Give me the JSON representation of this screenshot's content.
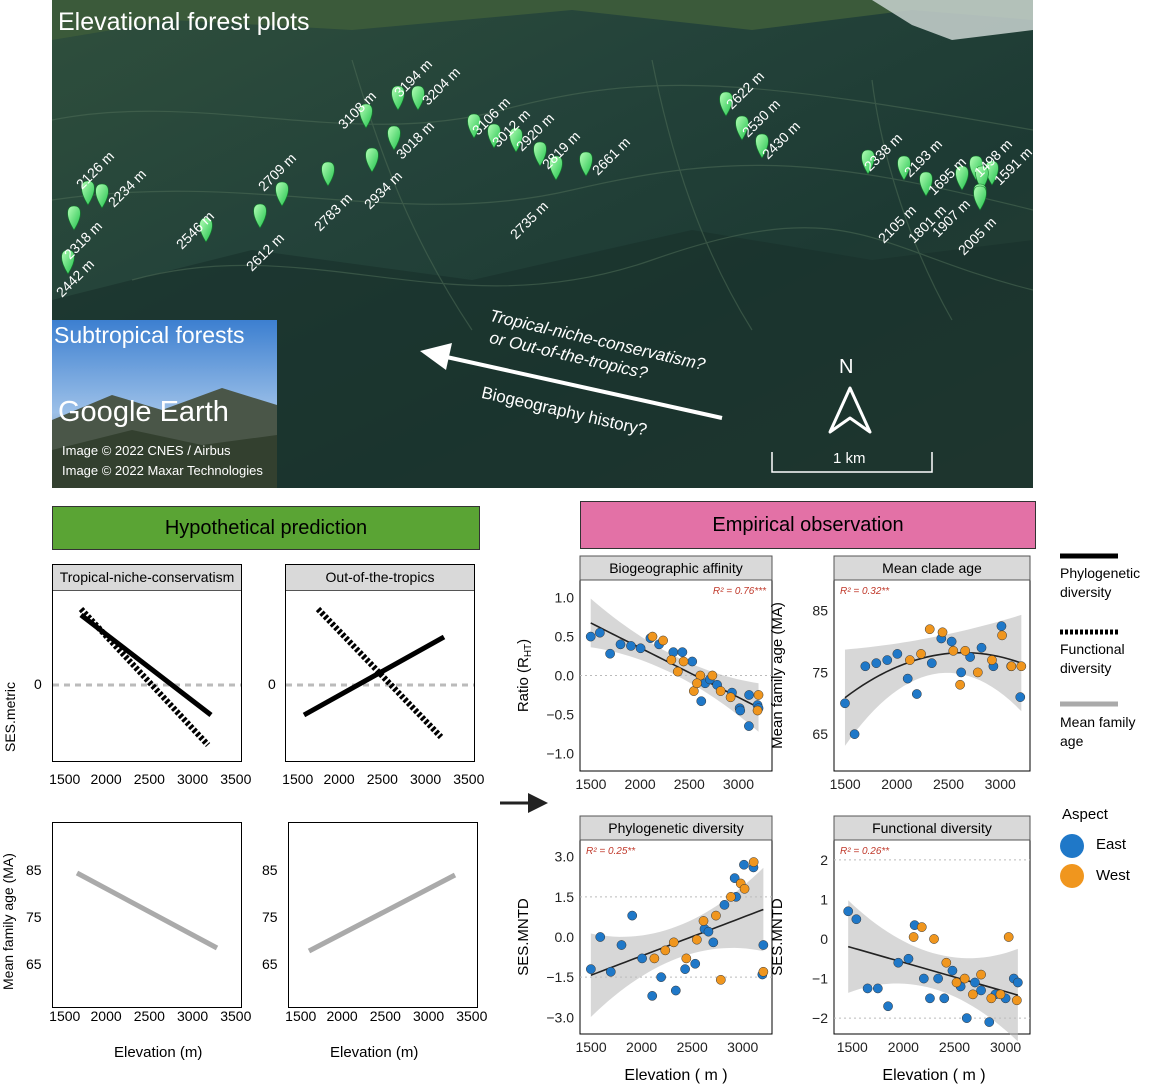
{
  "map": {
    "title": "Elevational forest plots",
    "inset_title": "Subtropical forests",
    "inset_brand": "Google Earth",
    "credit_1": "Image © 2022 CNES / Airbus",
    "credit_2": "Image © 2022 Maxar Technologies",
    "arrow_text_1": "Tropical-niche-conservatism?",
    "arrow_text_2": "or Out-of-the-tropics?",
    "arrow_text_3": "Biogeography history?",
    "north": "N",
    "scale": "1 km",
    "plots": [
      "2126 m",
      "2234 m",
      "2318 m",
      "2442 m",
      "2546 m",
      "2709 m",
      "2612 m",
      "2783 m",
      "3108 m",
      "3194 m",
      "3204 m",
      "3018 m",
      "2934 m",
      "3106 m",
      "3012 m",
      "2920 m",
      "2819 m",
      "2661 m",
      "2735 m",
      "2622 m",
      "2530 m",
      "2430 m",
      "2338 m",
      "2193 m",
      "1695 m",
      "1498 m",
      "1591 m",
      "2105 m",
      "1801 m",
      "1907 m",
      "2005 m"
    ]
  },
  "hypothesis": {
    "header": "Hypothetical prediction",
    "panel_tnc": "Tropical-niche-conservatism",
    "panel_ott": "Out-of-the-tropics",
    "ylabel_top": "SES.metric",
    "ylabel_bottom": "Mean family age (MA)",
    "xlabel": "Elevation (m)",
    "xticks": [
      "1500",
      "2000",
      "2500",
      "3000",
      "3500"
    ],
    "yticks_top": [
      "0"
    ],
    "yticks_bottom": [
      "85",
      "75",
      "65"
    ]
  },
  "empirical": {
    "header": "Empirical observation",
    "xlabel": "Elevation ( m )",
    "panels": {
      "affinity": {
        "title": "Biogeographic affinity",
        "ylabel": "Ratio (R",
        "ylabel_sub": "HT",
        "ylabel_end": ")",
        "r2": "R² = 0.76***",
        "yticks": [
          "1.0",
          "0.5",
          "0.0",
          "−0.5",
          "−1.0"
        ],
        "xticks": [
          "1500",
          "2000",
          "2500",
          "3000"
        ]
      },
      "clade": {
        "title": "Mean clade age",
        "ylabel": "Mean family age (MA)",
        "r2": "R² = 0.32**",
        "yticks": [
          "85",
          "75",
          "65"
        ],
        "xticks": [
          "1500",
          "2000",
          "2500",
          "3000"
        ]
      },
      "phylo": {
        "title": "Phylogenetic diversity",
        "ylabel": "SES.MNTD",
        "r2": "R² = 0.25**",
        "yticks": [
          "3.0",
          "1.5",
          "0.0",
          "−1.5",
          "−3.0"
        ],
        "xticks": [
          "1500",
          "2000",
          "2500",
          "3000"
        ]
      },
      "func": {
        "title": "Functional diversity",
        "ylabel": "SES.MNTD",
        "r2": "R² = 0.26**",
        "yticks": [
          "2",
          "1",
          "0",
          "−1",
          "−2"
        ],
        "xticks": [
          "1500",
          "2000",
          "2500",
          "3000"
        ]
      }
    }
  },
  "legend": {
    "phylo": "Phylogenetic diversity",
    "phylo_2": "diversity",
    "phylo_1": "Phylogenetic",
    "func_1": "Functional",
    "func_2": "diversity",
    "age_1": "Mean family",
    "age_2": "age",
    "aspect_title": "Aspect",
    "east": "East",
    "west": "West"
  },
  "colors": {
    "east": "#1f78c8",
    "west": "#f0961e",
    "hyp_header": "#5aa434",
    "emp_header": "#e371a6",
    "pin": "#3ee26a"
  },
  "chart_data": [
    {
      "type": "scatter",
      "title": "Biogeographic affinity",
      "ylabel": "Ratio (RHT)",
      "xlabel": "Elevation ( m )",
      "xlim": [
        1450,
        3280
      ],
      "ylim": [
        -1.15,
        1.15
      ],
      "series": [
        {
          "name": "East",
          "x": [
            1498,
            1591,
            1695,
            1801,
            1907,
            2005,
            2105,
            2193,
            2338,
            2430,
            2530,
            2622,
            2661,
            2709,
            2783,
            2934,
            3012,
            3018,
            3106,
            3108,
            3194,
            3204
          ],
          "y": [
            0.5,
            0.55,
            0.28,
            0.4,
            0.38,
            0.35,
            0.48,
            0.4,
            0.3,
            0.3,
            0.18,
            -0.33,
            -0.1,
            -0.05,
            -0.12,
            -0.22,
            -0.42,
            -0.45,
            -0.65,
            -0.25,
            -0.38,
            -0.42
          ]
        },
        {
          "name": "West",
          "x": [
            2126,
            2234,
            2318,
            2442,
            2546,
            2612,
            2735,
            2819,
            2920,
            3194,
            3204,
            2383,
            2578
          ],
          "y": [
            0.5,
            0.45,
            0.2,
            0.18,
            -0.2,
            0.0,
            0.0,
            -0.2,
            -0.28,
            -0.45,
            -0.25,
            0.05,
            -0.1
          ]
        }
      ]
    },
    {
      "type": "scatter",
      "title": "Mean clade age",
      "ylabel": "Mean family age (MA)",
      "xlabel": "Elevation ( m )",
      "xlim": [
        1450,
        3230
      ],
      "ylim": [
        60,
        89
      ],
      "series": [
        {
          "name": "East",
          "x": [
            1498,
            1591,
            1695,
            1801,
            1907,
            2005,
            2105,
            2193,
            2338,
            2430,
            2530,
            2622,
            2709,
            2819,
            2934,
            3012,
            3106,
            3194
          ],
          "y": [
            70.0,
            65.0,
            76.0,
            76.5,
            77.0,
            78.0,
            74.0,
            71.5,
            76.5,
            80.5,
            80.0,
            75.0,
            77.5,
            79.0,
            76.0,
            82.5,
            76.0,
            71.0
          ]
        },
        {
          "name": "West",
          "x": [
            2126,
            2234,
            2318,
            2442,
            2546,
            2612,
            2661,
            2783,
            2920,
            3018,
            3108,
            3204
          ],
          "y": [
            77.0,
            78.0,
            82.0,
            81.5,
            78.5,
            73.0,
            78.5,
            75.0,
            77.0,
            81.0,
            76.0,
            76.0
          ]
        }
      ]
    },
    {
      "type": "scatter",
      "title": "Phylogenetic diversity",
      "ylabel": "SES.MNTD",
      "xlabel": "Elevation ( m )",
      "xlim": [
        1450,
        3230
      ],
      "ylim": [
        -3.4,
        3.4
      ],
      "series": [
        {
          "name": "East",
          "x": [
            1498,
            1591,
            1695,
            1801,
            1907,
            2005,
            2105,
            2193,
            2338,
            2430,
            2530,
            2622,
            2661,
            2709,
            2819,
            2920,
            2934,
            3012,
            3106,
            3194,
            3204
          ],
          "y": [
            -1.2,
            0.0,
            -1.3,
            -0.3,
            0.8,
            -0.8,
            -2.2,
            -1.5,
            -2.0,
            -1.2,
            -1.0,
            0.3,
            0.2,
            -0.2,
            1.2,
            2.2,
            1.5,
            2.7,
            2.6,
            -1.4,
            -0.3
          ]
        },
        {
          "name": "West",
          "x": [
            2126,
            2234,
            2318,
            2442,
            2546,
            2612,
            2735,
            2783,
            2883,
            2980,
            3018,
            3108,
            3204
          ],
          "y": [
            -0.8,
            -0.5,
            -0.2,
            -0.8,
            -0.1,
            0.6,
            0.8,
            -1.6,
            1.5,
            2.0,
            1.8,
            2.8,
            -1.3
          ]
        }
      ]
    },
    {
      "type": "scatter",
      "title": "Functional diversity",
      "ylabel": "SES.MNTD",
      "xlabel": "Elevation ( m )",
      "xlim": [
        1380,
        3180
      ],
      "ylim": [
        -2.25,
        2.35
      ],
      "series": [
        {
          "name": "East",
          "x": [
            1460,
            1540,
            1650,
            1750,
            1850,
            1950,
            2050,
            2110,
            2200,
            2260,
            2340,
            2400,
            2480,
            2560,
            2620,
            2700,
            2760,
            2840,
            2900,
            3000,
            3080,
            3120
          ],
          "y": [
            0.7,
            0.5,
            -1.25,
            -1.25,
            -1.7,
            -0.6,
            -0.5,
            0.35,
            -1.0,
            -1.5,
            -1.0,
            -1.5,
            -0.8,
            -1.2,
            -2.0,
            -1.1,
            -1.3,
            -2.1,
            -1.4,
            -1.5,
            -1.0,
            -1.1
          ]
        },
        {
          "name": "West",
          "x": [
            2100,
            2180,
            2300,
            2420,
            2520,
            2600,
            2680,
            2760,
            2860,
            2950,
            3030,
            3110
          ],
          "y": [
            0.05,
            0.3,
            0.0,
            -0.6,
            -1.1,
            -1.0,
            -1.4,
            -0.9,
            -1.5,
            -1.4,
            0.05,
            -1.55
          ]
        }
      ]
    }
  ]
}
